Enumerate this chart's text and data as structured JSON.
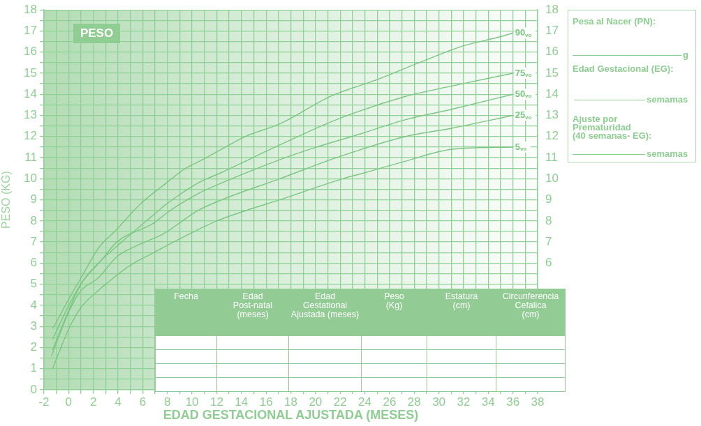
{
  "chart_data": {
    "type": "line",
    "title": "PESO",
    "xlabel": "EDAD GESTACIONAL AJUSTADA (MESES)",
    "ylabel": "PESO (KG)",
    "xlim": [
      -2,
      38
    ],
    "xticks": [
      -2,
      {
        "value": -1,
        "label": null
      },
      0,
      {
        "value": 1,
        "label": null
      },
      2,
      {
        "value": 3,
        "label": null
      },
      4,
      {
        "value": 5,
        "label": null
      },
      6,
      {
        "value": 7,
        "label": null
      },
      8,
      {
        "value": 9,
        "label": null
      },
      10,
      {
        "value": 11,
        "label": null
      },
      12,
      {
        "value": 13,
        "label": null
      },
      14,
      {
        "value": 15,
        "label": null
      },
      16,
      {
        "value": 17,
        "label": null
      },
      18,
      {
        "value": 19,
        "label": null
      },
      20,
      {
        "value": 21,
        "label": null
      },
      22,
      {
        "value": 23,
        "label": null
      },
      24,
      {
        "value": 25,
        "label": null
      },
      26,
      {
        "value": 27,
        "label": null
      },
      28,
      {
        "value": 29,
        "label": null
      },
      30,
      {
        "value": 31,
        "label": null
      },
      32,
      {
        "value": 33,
        "label": null
      },
      34,
      {
        "value": 35,
        "label": null
      },
      36,
      {
        "value": 37,
        "label": null
      },
      38
    ],
    "ylim": [
      0,
      18
    ],
    "yticks": [
      0,
      {
        "value": 0.5,
        "label": null
      },
      1,
      {
        "value": 1.5,
        "label": null
      },
      2,
      {
        "value": 2.5,
        "label": null
      },
      3,
      {
        "value": 3.5,
        "label": null
      },
      4,
      {
        "value": 4.5,
        "label": null
      },
      5,
      {
        "value": 5.5,
        "label": null
      },
      6,
      {
        "value": 6.5,
        "label": null
      },
      7,
      {
        "value": 7.5,
        "label": null
      },
      8,
      {
        "value": 8.5,
        "label": null
      },
      9,
      {
        "value": 9.5,
        "label": null
      },
      10,
      {
        "value": 10.5,
        "label": null
      },
      11,
      {
        "value": 11.5,
        "label": null
      },
      12,
      {
        "value": 12.5,
        "label": null
      },
      13,
      {
        "value": 13.5,
        "label": null
      },
      14,
      {
        "value": 14.5,
        "label": null
      },
      15,
      {
        "value": 15.5,
        "label": null
      },
      16,
      {
        "value": 16.5,
        "label": null
      },
      17,
      {
        "value": 17.5,
        "label": null
      },
      18
    ],
    "y2lim": [
      0,
      18
    ],
    "y2ticks": [
      6,
      7,
      8,
      9,
      10,
      11,
      12,
      13,
      14,
      15,
      16,
      17,
      18
    ],
    "grid": true,
    "marker": "none",
    "legend": false,
    "series": [
      {
        "name": "90$_{vo}$",
        "color": "#7cc683",
        "x": [
          -1.3,
          -1.0,
          0.1,
          1.0,
          2.4,
          3.9,
          5.8,
          7.7,
          9.5,
          10.5,
          12.4,
          14.3,
          17.1,
          21.2,
          25.0,
          28.4,
          32.0,
          34.8,
          36.0
        ],
        "values": [
          2.9,
          3.2,
          4.4,
          5.3,
          6.7,
          7.6,
          8.8,
          9.7,
          10.5,
          10.8,
          11.4,
          12.0,
          12.6,
          13.9,
          14.7,
          15.5,
          16.3,
          16.7,
          16.9
        ]
      },
      {
        "name": "75$_{vo}$",
        "color": "#7cc683",
        "x": [
          -1.3,
          0.1,
          1.2,
          2.4,
          4.3,
          7.3,
          7.7,
          10.5,
          12.4,
          17.1,
          21.7,
          27.3,
          31.1,
          36.0
        ],
        "values": [
          2.4,
          4.1,
          5.2,
          6.0,
          7.0,
          8.5,
          8.7,
          9.8,
          10.3,
          11.6,
          12.8,
          13.9,
          14.4,
          15.0
        ]
      },
      {
        "name": "50$_{vo}$",
        "color": "#7cc683",
        "x": [
          -1.3,
          0.1,
          1.0,
          2.6,
          3.9,
          6.9,
          8.0,
          10.5,
          12.0,
          17.1,
          20.1,
          23.5,
          27.3,
          31.1,
          36.0
        ],
        "values": [
          1.9,
          3.9,
          5.0,
          6.1,
          7.0,
          7.9,
          8.4,
          9.3,
          9.7,
          10.9,
          11.5,
          12.1,
          12.8,
          13.3,
          14.0
        ]
      },
      {
        "name": "25$_{vo}$",
        "color": "#7cc683",
        "x": [
          -1.4,
          0.1,
          1.0,
          2.4,
          3.9,
          5.8,
          7.7,
          10.5,
          12.4,
          17.1,
          21.7,
          27.3,
          31.1,
          36.0
        ],
        "values": [
          1.6,
          3.8,
          4.7,
          5.3,
          6.3,
          6.9,
          7.4,
          8.5,
          9.0,
          10.0,
          11.0,
          12.0,
          12.4,
          13.0
        ]
      },
      {
        "name": "5$_{vo}$",
        "color": "#7cc683",
        "x": [
          -1.3,
          -0.7,
          0.1,
          1.0,
          2.4,
          3.0,
          5.0,
          6.9,
          9.5,
          12.0,
          14.4,
          17.1,
          22.2,
          24.1,
          27.1,
          31.1,
          36.0
        ],
        "values": [
          1.0,
          1.9,
          3.0,
          3.9,
          4.7,
          5.0,
          5.9,
          6.5,
          7.3,
          8.0,
          8.5,
          9.0,
          10.0,
          10.3,
          10.8,
          11.4,
          11.5
        ]
      }
    ],
    "annotations": [
      "Fecha",
      "Edad\nPost-natal\n(meses)",
      "Edad\nGestational\nAjustada (meses)",
      "Peso\n(Kg)",
      "Estatura\n(cm)",
      "Circunferencia\nCefalica\n(cm)",
      "Pesa al Nacer (PN):",
      "g",
      "Edad Gestacional (EG):",
      "semamas",
      "Ajuste por\nPrematuridad\n(40 semanas- EG):",
      "semamas"
    ]
  }
}
